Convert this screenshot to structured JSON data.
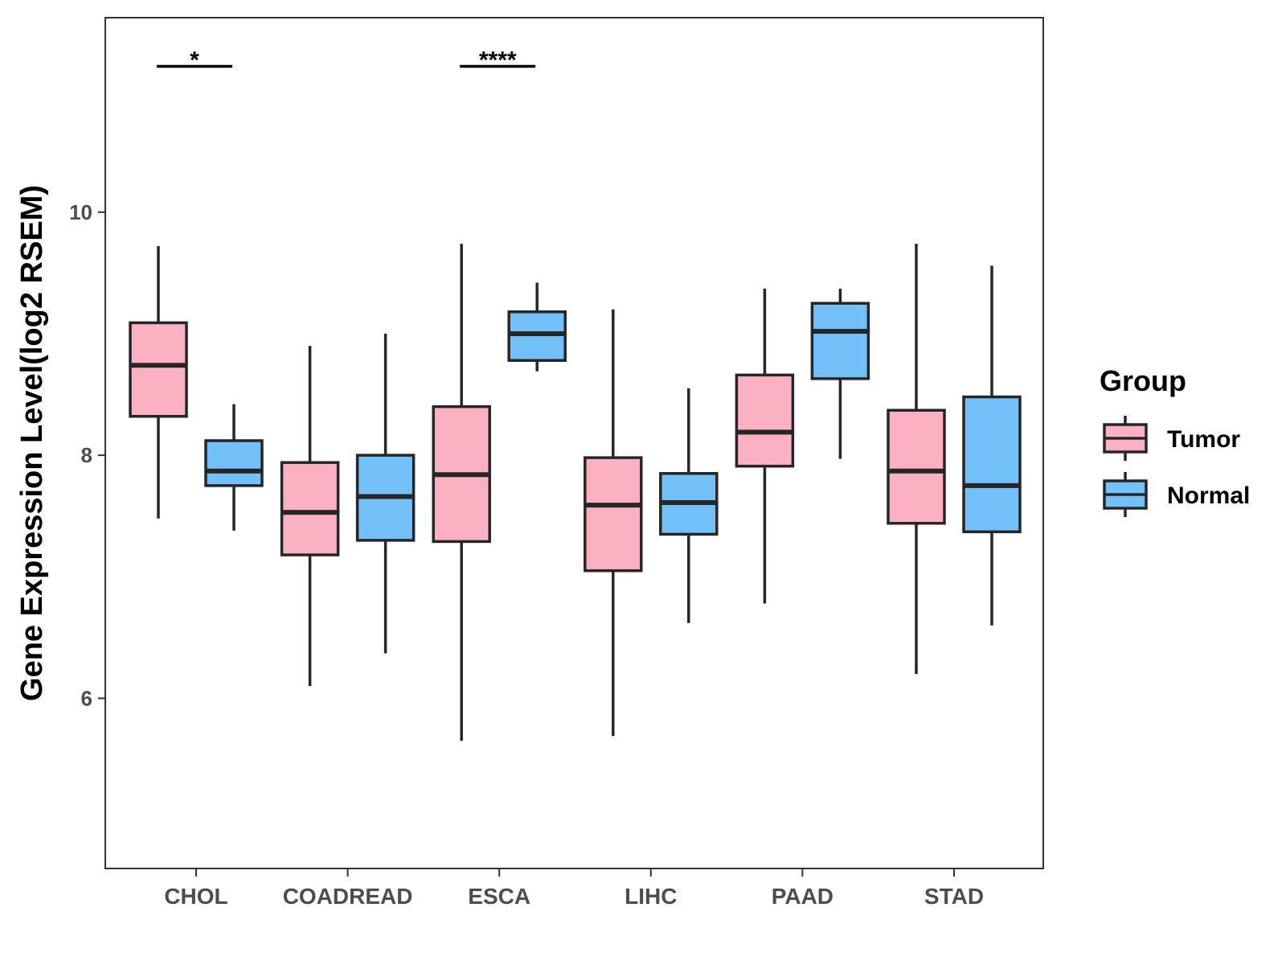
{
  "chart_data": {
    "type": "boxplot",
    "title": "",
    "xlabel": "",
    "ylabel": "Gene Expression Level(log2 RSEM)",
    "ylim": [
      4.6,
      11.6
    ],
    "yticks": [
      6,
      8,
      10
    ],
    "categories": [
      "CHOL",
      "COADREAD",
      "ESCA",
      "LIHC",
      "PAAD",
      "STAD"
    ],
    "legend": {
      "title": "Group",
      "position": "right"
    },
    "series": [
      {
        "name": "Tumor",
        "color": "#FBB1C2",
        "boxes": [
          {
            "min": 7.48,
            "q1": 8.32,
            "median": 8.74,
            "q3": 9.09,
            "max": 9.72
          },
          {
            "min": 6.1,
            "q1": 7.18,
            "median": 7.53,
            "q3": 7.94,
            "max": 8.9
          },
          {
            "min": 5.65,
            "q1": 7.29,
            "median": 7.84,
            "q3": 8.4,
            "max": 9.74
          },
          {
            "min": 5.69,
            "q1": 7.05,
            "median": 7.59,
            "q3": 7.98,
            "max": 9.2
          },
          {
            "min": 6.78,
            "q1": 7.91,
            "median": 8.19,
            "q3": 8.66,
            "max": 9.37
          },
          {
            "min": 6.2,
            "q1": 7.44,
            "median": 7.87,
            "q3": 8.37,
            "max": 9.74
          }
        ]
      },
      {
        "name": "Normal",
        "color": "#74C0F8",
        "boxes": [
          {
            "min": 7.38,
            "q1": 7.75,
            "median": 7.87,
            "q3": 8.12,
            "max": 8.42
          },
          {
            "min": 6.37,
            "q1": 7.3,
            "median": 7.66,
            "q3": 8.0,
            "max": 9.0
          },
          {
            "min": 8.69,
            "q1": 8.78,
            "median": 9.0,
            "q3": 9.18,
            "max": 9.42
          },
          {
            "min": 6.62,
            "q1": 7.35,
            "median": 7.61,
            "q3": 7.85,
            "max": 8.55
          },
          {
            "min": 7.97,
            "q1": 8.63,
            "median": 9.02,
            "q3": 9.25,
            "max": 9.37
          },
          {
            "min": 6.6,
            "q1": 7.37,
            "median": 7.75,
            "q3": 8.48,
            "max": 9.56
          }
        ]
      }
    ],
    "significance": [
      {
        "category": "CHOL",
        "label": "*",
        "y": 11.2
      },
      {
        "category": "ESCA",
        "label": "****",
        "y": 11.2
      }
    ]
  }
}
